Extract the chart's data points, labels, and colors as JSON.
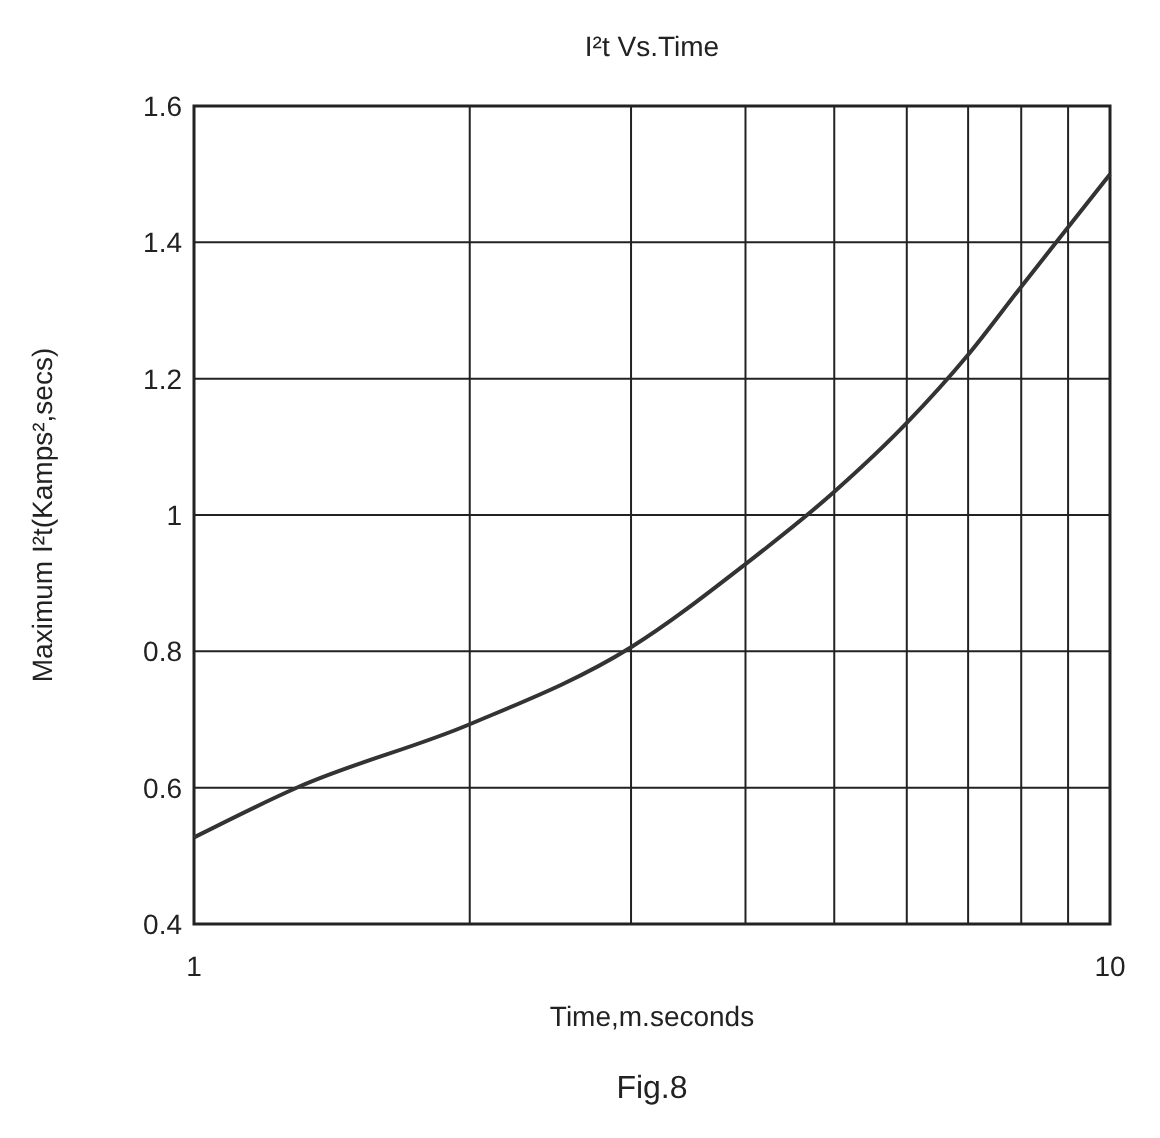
{
  "chart_data": {
    "type": "line",
    "title": "I²t  Vs.Time",
    "xlabel": "Time,m.seconds",
    "ylabel": "Maximum I²t(Kamps²,secs)",
    "annotations": [
      "Fig.8"
    ],
    "log": "x",
    "grid": true,
    "marker": "none",
    "line_style": "solid",
    "x": [
      1,
      1.3,
      2,
      3,
      4,
      5,
      6,
      7,
      8,
      9,
      10
    ],
    "series": [
      {
        "color": "#333333",
        "values": [
          0.527,
          0.601,
          0.693,
          0.806,
          0.928,
          1.034,
          1.135,
          1.235,
          1.335,
          1.422,
          1.5
        ]
      }
    ],
    "xlim": [
      1,
      10
    ],
    "xticks": [
      1,
      {
        "value": 2,
        "label": null
      },
      {
        "value": 3,
        "label": null
      },
      {
        "value": 4,
        "label": null
      },
      {
        "value": 5,
        "label": null
      },
      {
        "value": 6,
        "label": null
      },
      {
        "value": 7,
        "label": null
      },
      {
        "value": 8,
        "label": null
      },
      {
        "value": 9,
        "label": null
      },
      10
    ],
    "ylim": [
      0.4,
      1.6
    ],
    "yticks": [
      0.4,
      0.6,
      0.8,
      1,
      1.2,
      1.4,
      1.6
    ]
  }
}
